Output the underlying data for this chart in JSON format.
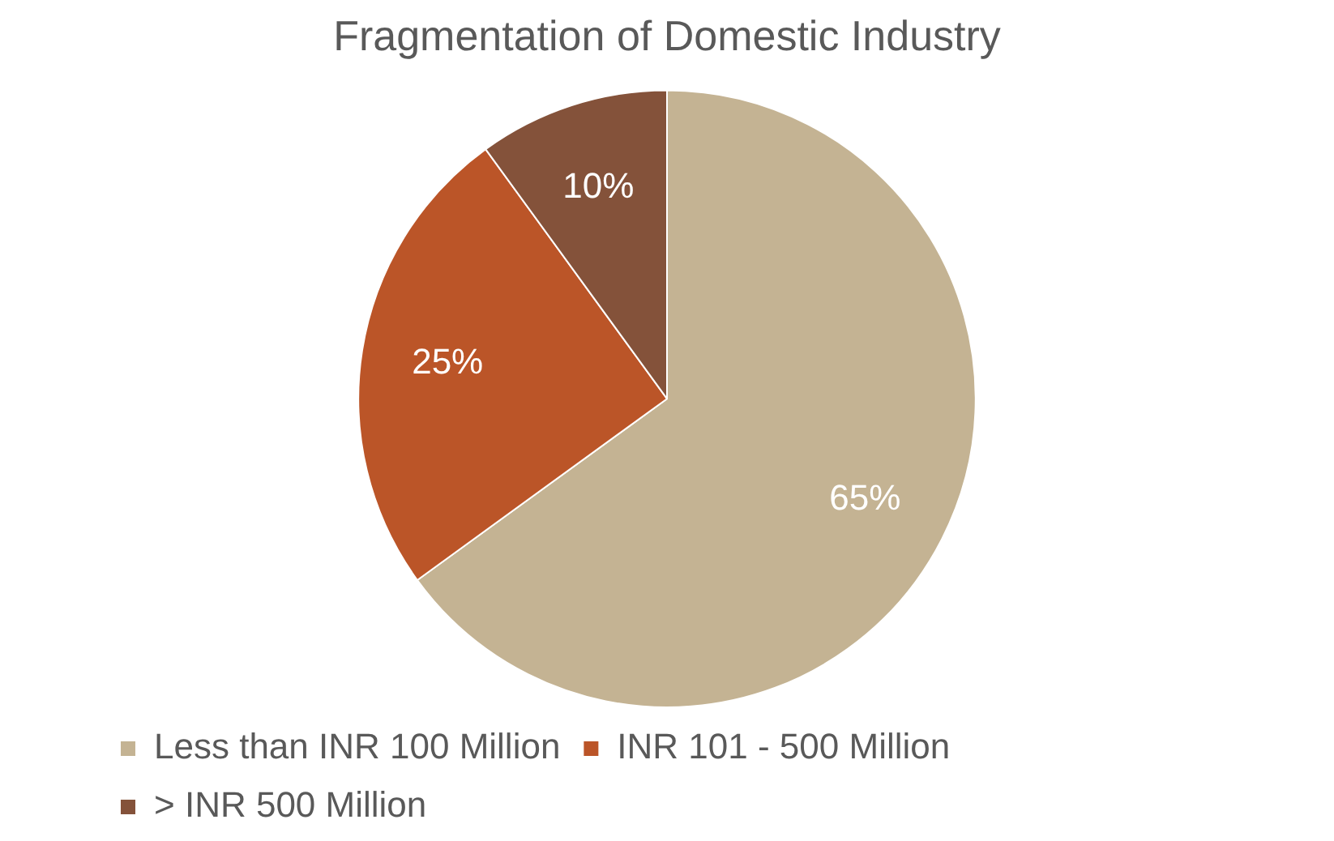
{
  "chart_data": {
    "type": "pie",
    "title": "Fragmentation of Domestic Industry",
    "categories": [
      "Less than INR 100 Million",
      "INR 101 - 500 Million",
      "> INR 500 Million"
    ],
    "values": [
      65,
      25,
      10
    ],
    "colors": [
      "#c4b393",
      "#bb5528",
      "#84523a"
    ],
    "value_labels": [
      "65%",
      "25%",
      "10%"
    ],
    "legend": "bottom"
  }
}
